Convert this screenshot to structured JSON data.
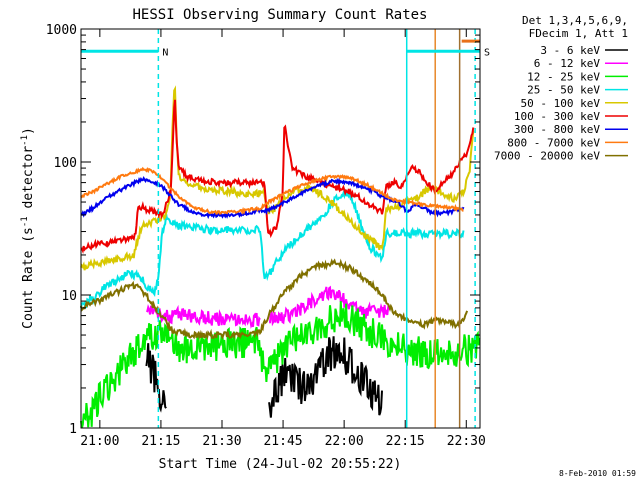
{
  "chart_data": {
    "type": "line",
    "title": "HESSI Observing Summary Count Rates",
    "xlabel": "Start Time (24-Jul-02 20:55:22)",
    "ylabel_parts": [
      "Count Rate (s",
      "-1",
      " detector",
      "-1",
      ")"
    ],
    "footer": "8-Feb-2010 01:59",
    "x_unit": "minutes after 24-Jul-02 20:55:22",
    "xlim": [
      0,
      98
    ],
    "ylim": [
      1,
      1000
    ],
    "yscale": "log",
    "x_ticks": [
      {
        "label": "21:00",
        "value": 4.63
      },
      {
        "label": "21:15",
        "value": 19.63
      },
      {
        "label": "21:30",
        "value": 34.63
      },
      {
        "label": "21:45",
        "value": 49.63
      },
      {
        "label": "22:00",
        "value": 64.63
      },
      {
        "label": "22:15",
        "value": 79.63
      },
      {
        "label": "22:30",
        "value": 94.63
      }
    ],
    "y_ticks": [
      {
        "label": "1",
        "value": 1
      },
      {
        "label": "10",
        "value": 10
      },
      {
        "label": "100",
        "value": 100
      },
      {
        "label": "1000",
        "value": 1000
      }
    ],
    "legend_header": [
      "Det 1,3,4,5,6,9,",
      "FDecim 1, Att 1"
    ],
    "legend_position": "outside-right",
    "vlines": [
      {
        "x": 19.0,
        "color": "#00e5e5",
        "style": "dashed"
      },
      {
        "x": 80.0,
        "color": "#00e5e5",
        "style": "solid"
      },
      {
        "x": 96.8,
        "color": "#00e5e5",
        "style": "dashed"
      },
      {
        "x": 87.0,
        "color": "#e8882a",
        "style": "solid"
      },
      {
        "x": 93.0,
        "color": "#a07030",
        "style": "solid"
      }
    ],
    "bars": [
      {
        "x0": 0,
        "x1": 19.0,
        "y": 680,
        "color": "#00e5e5",
        "label": "N"
      },
      {
        "x0": 80.0,
        "x1": 98,
        "y": 680,
        "color": "#00e5e5",
        "label": "S"
      },
      {
        "x0": 93.5,
        "x1": 98,
        "y": 810,
        "color": "#e8701a",
        "label": ""
      }
    ],
    "series": [
      {
        "name": "3 - 6 keV",
        "color": "#000000",
        "noise": 0.32,
        "x": [
          0,
          15,
          16,
          17,
          19,
          21,
          22,
          24,
          45,
          46,
          48,
          50,
          52,
          55,
          58,
          61,
          64,
          66,
          68,
          71,
          74,
          80,
          90,
          98
        ],
        "y": [
          null,
          null,
          3.5,
          3.0,
          2.0,
          1.3,
          null,
          null,
          null,
          1.3,
          1.9,
          2.6,
          2.2,
          2.0,
          2.7,
          3.6,
          4.0,
          3.0,
          2.5,
          2.0,
          1.5,
          null,
          null,
          null
        ]
      },
      {
        "name": "6 - 12 keV",
        "color": "#ff00ff",
        "noise": 0.12,
        "x": [
          0,
          15,
          16,
          18,
          20,
          22,
          23,
          27,
          30,
          34,
          40,
          44,
          45,
          46,
          48,
          52,
          56,
          60,
          64,
          67,
          70,
          74,
          76,
          80,
          90,
          98
        ],
        "y": [
          null,
          null,
          8.0,
          7.5,
          7.0,
          6.8,
          7.2,
          7.0,
          6.8,
          6.5,
          6.5,
          6.5,
          null,
          6.5,
          6.8,
          7.2,
          8.5,
          10.5,
          9.5,
          8.0,
          7.5,
          7.5,
          7.5,
          null,
          null,
          null
        ]
      },
      {
        "name": "12 - 25 keV",
        "color": "#00ee00",
        "noise": 0.28,
        "x": [
          0,
          3,
          4,
          6,
          9,
          12,
          15,
          17,
          20,
          22,
          24,
          30,
          36,
          44,
          45,
          46,
          48,
          52,
          56,
          60,
          64,
          68,
          72,
          75,
          79,
          84,
          88,
          92,
          96,
          98
        ],
        "y": [
          1.2,
          1.3,
          1.6,
          2.0,
          2.5,
          3.5,
          4.3,
          4.8,
          5.0,
          4.3,
          4.0,
          4.1,
          4.3,
          4.5,
          2.5,
          2.5,
          3.3,
          4.3,
          5.2,
          6.2,
          7.2,
          6.0,
          5.0,
          4.5,
          3.9,
          3.7,
          3.6,
          3.8,
          4.0,
          4.0
        ]
      },
      {
        "name": "25 - 50 keV",
        "color": "#00e5e5",
        "noise": 0.07,
        "x": [
          0,
          2,
          4,
          6,
          8,
          10,
          12,
          14,
          16,
          18,
          19,
          20,
          21,
          22,
          24,
          28,
          32,
          36,
          40,
          44,
          45,
          46,
          48,
          52,
          56,
          60,
          63,
          65,
          67,
          69,
          71,
          73,
          74,
          75,
          76,
          78,
          80,
          82,
          84,
          86,
          88,
          90,
          92,
          94
        ],
        "y": [
          8.0,
          9.0,
          10.0,
          11.5,
          12.5,
          13.5,
          14.5,
          14.0,
          12.0,
          10.0,
          14.0,
          30.0,
          40.0,
          36.0,
          33.0,
          32.0,
          31.0,
          31.0,
          31.0,
          31.0,
          14.0,
          14.0,
          18.0,
          25.0,
          32.0,
          42.0,
          55.0,
          60.0,
          50.0,
          32.0,
          23.0,
          20.0,
          19.5,
          29.0,
          29.0,
          29.0,
          29.0,
          29.0,
          29.0,
          29.0,
          29.0,
          29.0,
          29.0,
          29.0
        ]
      },
      {
        "name": "50 - 100 keV",
        "color": "#d8c800",
        "noise": 0.06,
        "x": [
          0,
          3,
          6,
          10,
          13,
          14,
          15,
          18,
          21,
          22,
          22.5,
          23,
          23.5,
          24,
          26,
          30,
          36,
          40,
          44,
          45,
          46,
          48,
          50,
          53,
          56,
          60,
          64,
          66,
          68,
          70,
          72,
          73,
          74,
          75,
          78,
          80,
          83,
          86,
          89,
          92,
          94,
          95.5,
          96.5
        ],
        "y": [
          16,
          17,
          18,
          19,
          20,
          27,
          33,
          36,
          40,
          60,
          200,
          420,
          150,
          80,
          70,
          64,
          60,
          58,
          58,
          58,
          42,
          45,
          55,
          62,
          64,
          55,
          42,
          36,
          32,
          28,
          25,
          23,
          22,
          44,
          46,
          50,
          55,
          65,
          58,
          52,
          60,
          90,
          200
        ]
      },
      {
        "name": "100 - 300 keV",
        "color": "#ee0000",
        "noise": 0.05,
        "x": [
          0,
          4,
          8,
          12,
          13.5,
          14,
          17,
          20,
          22,
          22.5,
          23,
          23.5,
          24,
          26,
          30,
          36,
          40,
          44,
          45,
          46,
          48,
          49.5,
          50,
          50.5,
          52,
          55,
          58,
          62,
          66,
          68,
          70,
          72,
          74,
          75,
          77,
          79,
          81,
          83,
          85,
          87,
          89,
          91,
          93,
          95,
          96.5
        ],
        "y": [
          22,
          24,
          25,
          27,
          28,
          47,
          43,
          40,
          60,
          120,
          330,
          150,
          90,
          78,
          72,
          70,
          70,
          70,
          70,
          28,
          33,
          55,
          210,
          150,
          90,
          78,
          72,
          65,
          60,
          55,
          50,
          45,
          42,
          65,
          70,
          65,
          90,
          85,
          70,
          60,
          70,
          80,
          100,
          120,
          190
        ]
      },
      {
        "name": "300 - 800 keV",
        "color": "#0000ee",
        "noise": 0.03,
        "x": [
          0,
          3,
          6,
          10,
          14,
          16,
          18,
          20,
          24,
          28,
          32,
          36,
          40,
          44,
          46,
          50,
          54,
          58,
          62,
          66,
          70,
          72,
          74,
          76,
          78,
          80,
          82,
          84,
          86,
          88,
          90,
          92,
          94
        ],
        "y": [
          40,
          45,
          53,
          62,
          72,
          74,
          70,
          65,
          48,
          41,
          40,
          40,
          41,
          43,
          43,
          50,
          58,
          66,
          72,
          70,
          64,
          60,
          55,
          52,
          50,
          42,
          48,
          46,
          42,
          41,
          42,
          43,
          45
        ]
      },
      {
        "name": "800 - 7000 keV",
        "color": "#ff7a10",
        "noise": 0.025,
        "x": [
          0,
          3,
          6,
          10,
          14,
          16,
          18,
          20,
          24,
          28,
          32,
          36,
          40,
          44,
          46,
          50,
          54,
          58,
          62,
          66,
          70,
          74,
          78,
          80,
          84,
          88,
          92,
          94
        ],
        "y": [
          55,
          60,
          68,
          78,
          86,
          88,
          84,
          74,
          55,
          45,
          42,
          42,
          43,
          45,
          50,
          58,
          66,
          74,
          78,
          76,
          68,
          58,
          50,
          50,
          48,
          46,
          45,
          44
        ]
      },
      {
        "name": "7000 - 20000 keV",
        "color": "#807000",
        "noise": 0.05,
        "x": [
          0,
          3,
          6,
          10,
          12,
          14,
          16,
          18,
          20,
          22,
          26,
          30,
          34,
          38,
          42,
          44,
          46,
          50,
          54,
          58,
          62,
          66,
          70,
          74,
          76,
          78,
          80,
          84,
          88,
          92,
          94,
          95
        ],
        "y": [
          8.0,
          8.8,
          9.5,
          11.0,
          12.0,
          11.5,
          10.0,
          8.0,
          7.0,
          5.5,
          5.0,
          5.0,
          5.0,
          5.0,
          5.0,
          5.3,
          7.0,
          10.5,
          14.0,
          16.5,
          17.5,
          16.0,
          13.0,
          10.0,
          8.0,
          7.0,
          6.5,
          6.0,
          6.5,
          6.0,
          6.5,
          7.5
        ]
      }
    ]
  }
}
